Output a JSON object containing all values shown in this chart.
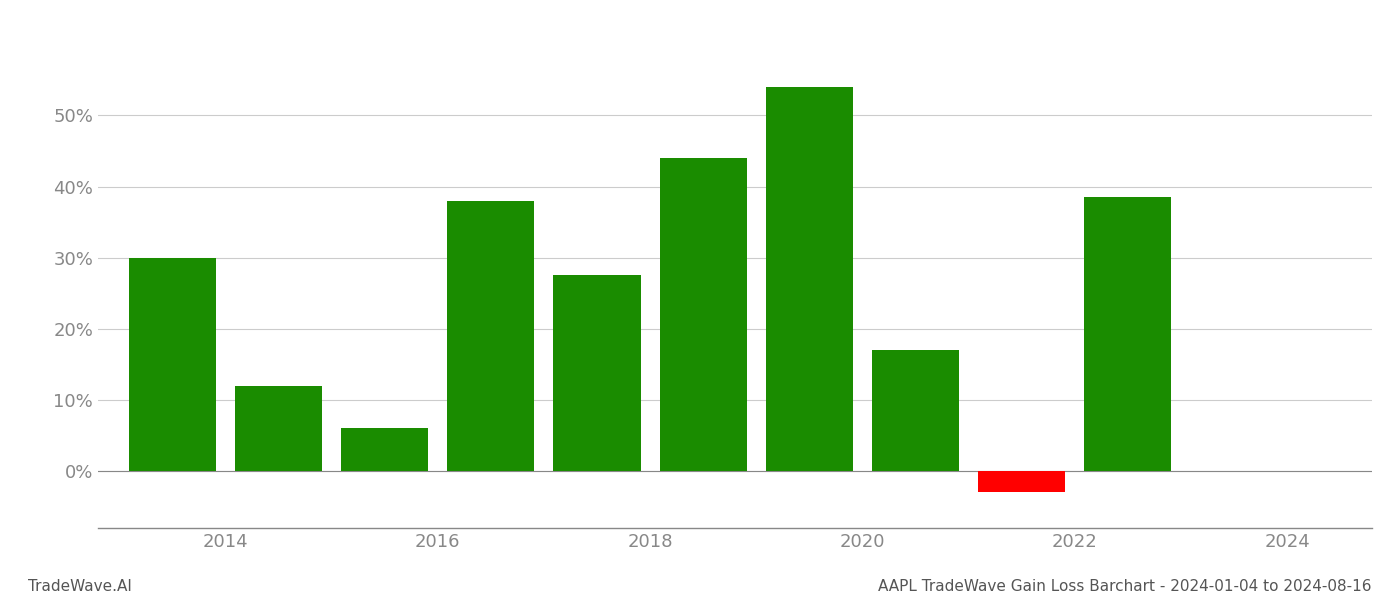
{
  "years": [
    2013.5,
    2014.5,
    2015.5,
    2016.5,
    2017.5,
    2018.5,
    2019.5,
    2020.5,
    2021.5,
    2022.5
  ],
  "values": [
    30.0,
    12.0,
    6.0,
    38.0,
    27.5,
    44.0,
    54.0,
    17.0,
    -3.0,
    38.5
  ],
  "bar_color_positive": "#1a8c00",
  "bar_color_negative": "#ff0000",
  "title": "AAPL TradeWave Gain Loss Barchart - 2024-01-04 to 2024-08-16",
  "footer_left": "TradeWave.AI",
  "ylim_min": -8,
  "ylim_max": 62,
  "yticks": [
    0,
    10,
    20,
    30,
    40,
    50
  ],
  "xticks": [
    2014,
    2016,
    2018,
    2020,
    2022,
    2024
  ],
  "xlim_min": 2012.8,
  "xlim_max": 2024.8,
  "background_color": "#ffffff",
  "grid_color": "#cccccc",
  "bar_width": 0.82,
  "title_fontsize": 11,
  "tick_fontsize": 13,
  "footer_fontsize": 11
}
